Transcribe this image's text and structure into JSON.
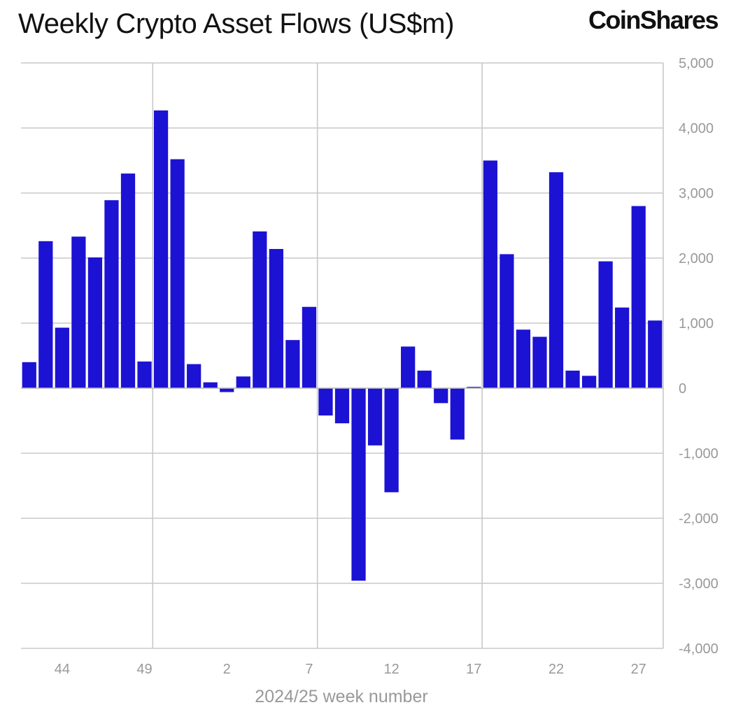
{
  "header": {
    "brand": "CoinShares"
  },
  "chart_data": {
    "type": "bar",
    "title": "Weekly Crypto Asset Flows (US$m)",
    "xlabel": "2024/25 week number",
    "ylabel": "",
    "ylim": [
      -4000,
      5000
    ],
    "yticks": [
      5000,
      4000,
      3000,
      2000,
      1000,
      0,
      -1000,
      -2000,
      -3000,
      -4000
    ],
    "ytick_labels": [
      "5,000",
      "4,000",
      "3,000",
      "2,000",
      "1,000",
      "0",
      "-1,000",
      "-2,000",
      "-3,000",
      "-4,000"
    ],
    "y_axis_side": "right",
    "grid": true,
    "vertical_gridlines_at": [
      "49",
      "7",
      "17"
    ],
    "xtick_labels": [
      "44",
      "49",
      "2",
      "7",
      "12",
      "17",
      "22",
      "27"
    ],
    "categories": [
      "42",
      "43",
      "44",
      "45",
      "46",
      "47",
      "48",
      "49",
      "50",
      "51",
      "52",
      "1",
      "2",
      "3",
      "4",
      "5",
      "6",
      "7",
      "8",
      "9",
      "10",
      "11",
      "12",
      "13",
      "14",
      "15",
      "16",
      "17",
      "18",
      "19",
      "20",
      "21",
      "22",
      "23",
      "24",
      "25",
      "26",
      "27",
      "28"
    ],
    "values": [
      400,
      2260,
      930,
      2330,
      2010,
      2890,
      3300,
      410,
      4270,
      3520,
      370,
      90,
      -60,
      180,
      2410,
      2140,
      740,
      1250,
      -420,
      -540,
      -2960,
      -880,
      -1600,
      640,
      270,
      -230,
      -790,
      20,
      3500,
      2060,
      900,
      790,
      3320,
      270,
      190,
      1950,
      1240,
      2800,
      1040
    ],
    "bar_color": "#1c12d3"
  }
}
